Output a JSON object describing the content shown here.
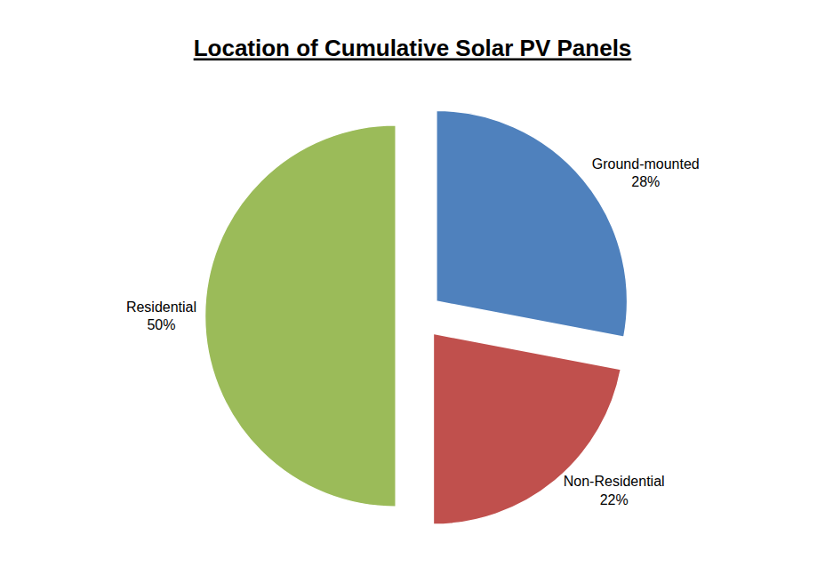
{
  "chart_data": {
    "type": "pie",
    "title": "Location of Cumulative Solar PV Panels",
    "categories": [
      "Ground-mounted",
      "Non-Residential",
      "Residential"
    ],
    "values": [
      28,
      22,
      50
    ],
    "value_labels": [
      "28%",
      "22%",
      "50%"
    ],
    "colors": [
      "#4f81bd",
      "#c0504d",
      "#9bbb59"
    ],
    "data_labels": true
  }
}
